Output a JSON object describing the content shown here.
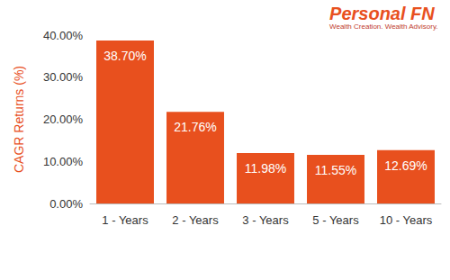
{
  "chart_data": {
    "type": "bar",
    "title": "Personal FN",
    "subtitle": "Wealth Creation. Wealth Advisory.",
    "y_label": "CAGR Returns (%)",
    "categories": [
      "1 - Years",
      "2 - Years",
      "3 - Years",
      "5 - Years",
      "10 - Years"
    ],
    "values": [
      38.7,
      21.76,
      11.98,
      11.55,
      12.69
    ],
    "value_labels": [
      "38.70%",
      "21.76%",
      "11.98%",
      "11.55%",
      "12.69%"
    ],
    "color": "#e8501e",
    "ylim": [
      0,
      40
    ],
    "yticks": [
      {
        "value": 0,
        "label": "0.00%"
      },
      {
        "value": 10,
        "label": "10.00%"
      },
      {
        "value": 20,
        "label": "20.00%"
      },
      {
        "value": 30,
        "label": "30.00%"
      },
      {
        "value": 40,
        "label": "40.00%"
      }
    ],
    "grid": false,
    "data_labels": true
  }
}
